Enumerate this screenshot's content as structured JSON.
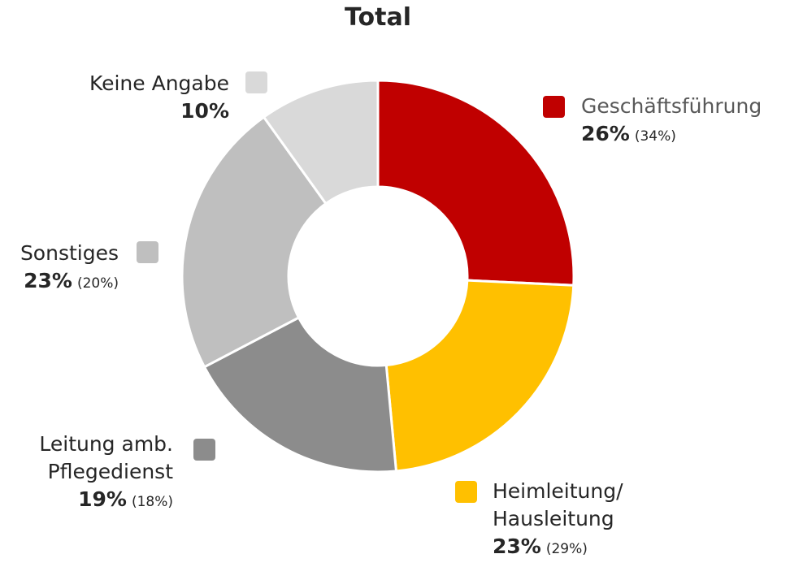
{
  "chart_data": {
    "type": "donut",
    "title": "Total",
    "categories": [
      "Geschäftsführung",
      "Heimleitung/\nHausleitung",
      "Leitung amb.\nPflegedienst",
      "Sonstiges",
      "Keine Angabe"
    ],
    "values": [
      26,
      23,
      19,
      23,
      10
    ],
    "value_labels": [
      "26%",
      "23%",
      "19%",
      "23%",
      "10%"
    ],
    "comparison_value_labels": [
      "(34%)",
      "(29%)",
      "(18%)",
      "(20%)",
      null
    ],
    "colors": [
      "#c00000",
      "#ffc000",
      "#8c8c8c",
      "#bfbfbf",
      "#d9d9d9"
    ]
  }
}
